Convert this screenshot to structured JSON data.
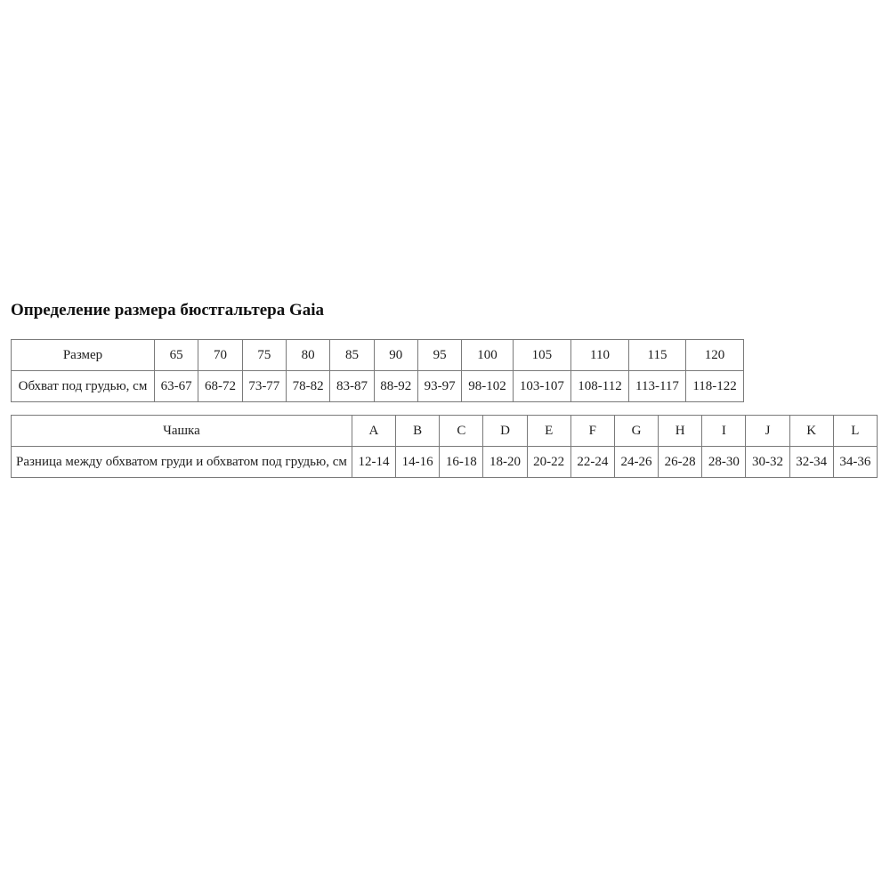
{
  "page": {
    "title": "Определение размера бюстгальтера Gaia"
  },
  "tables": [
    {
      "name": "band-size-table",
      "rows": [
        {
          "label": "Размер",
          "values": [
            "65",
            "70",
            "75",
            "80",
            "85",
            "90",
            "95",
            "100",
            "105",
            "110",
            "115",
            "120"
          ]
        },
        {
          "label": "Обхват под грудью, см",
          "values": [
            "63-67",
            "68-72",
            "73-77",
            "78-82",
            "83-87",
            "88-92",
            "93-97",
            "98-102",
            "103-107",
            "108-112",
            "113-117",
            "118-122"
          ]
        }
      ]
    },
    {
      "name": "cup-size-table",
      "rows": [
        {
          "label": "Чашка",
          "values": [
            "A",
            "B",
            "C",
            "D",
            "E",
            "F",
            "G",
            "H",
            "I",
            "J",
            "K",
            "L"
          ]
        },
        {
          "label": "Разница между обхватом груди и обхватом под грудью, см",
          "values": [
            "12-14",
            "14-16",
            "16-18",
            "18-20",
            "20-22",
            "22-24",
            "24-26",
            "26-28",
            "28-30",
            "30-32",
            "32-34",
            "34-36"
          ]
        }
      ]
    }
  ],
  "colors": {
    "background": "#ffffff",
    "text": "#1c1c1c",
    "table_border": "#7a7a7a"
  }
}
